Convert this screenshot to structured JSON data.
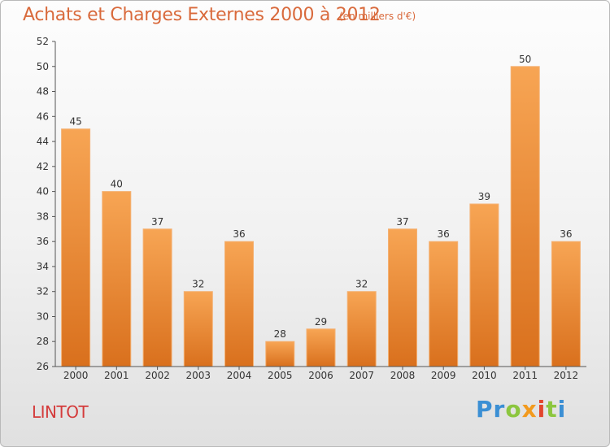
{
  "header": {
    "title": "Achats et Charges Externes 2000 à 2012",
    "unit": "(en milliers d'€)"
  },
  "footer": {
    "commune": "LINTOT",
    "logo": {
      "letters": [
        "P",
        "r",
        "o",
        "x",
        "i",
        "t",
        "i"
      ],
      "colors": [
        "#3b8fd4",
        "#3b8fd4",
        "#8cc63f",
        "#f29a1d",
        "#e2452d",
        "#8cc63f",
        "#3b8fd4"
      ]
    }
  },
  "colors": {
    "bar_top": "#f7a554",
    "bar_bottom": "#d9701d",
    "title": "#d96a3c",
    "commune": "#d43b3b"
  },
  "chart_data": {
    "type": "bar",
    "title": "Achats et Charges Externes 2000 à 2012",
    "subtitle": "(en milliers d'€)",
    "categories": [
      "2000",
      "2001",
      "2002",
      "2003",
      "2004",
      "2005",
      "2006",
      "2007",
      "2008",
      "2009",
      "2010",
      "2011",
      "2012"
    ],
    "values": [
      45,
      40,
      37,
      32,
      36,
      28,
      29,
      32,
      37,
      36,
      39,
      50,
      36
    ],
    "ylim": [
      26,
      52
    ],
    "yticks": [
      26,
      28,
      30,
      32,
      34,
      36,
      38,
      40,
      42,
      44,
      46,
      48,
      50,
      52
    ],
    "xlabel": "",
    "ylabel": "",
    "grid": false,
    "legend": "none"
  }
}
